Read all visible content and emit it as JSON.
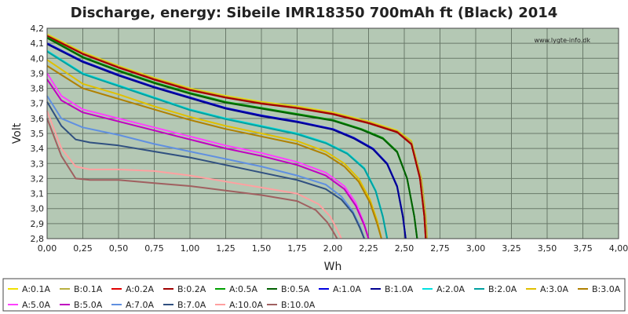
{
  "chart_data": {
    "type": "line",
    "title": "Discharge, energy: Sibeile IMR18350 700mAh ft (Black) 2014",
    "xlabel": "Wh",
    "ylabel": "Volt",
    "watermark": "www.lygte-info.dk",
    "xlim": [
      0,
      4.0
    ],
    "ylim": [
      2.8,
      4.2
    ],
    "x_ticks": [
      "0,00",
      "0,25",
      "0,50",
      "0,75",
      "1,00",
      "1,25",
      "1,50",
      "1,75",
      "2,00",
      "2,25",
      "2,50",
      "2,75",
      "3,00",
      "3,25",
      "3,50",
      "3,75",
      "4,00"
    ],
    "y_ticks": [
      "2,8",
      "2,9",
      "3,0",
      "3,1",
      "3,2",
      "3,3",
      "3,4",
      "3,5",
      "3,6",
      "3,7",
      "3,8",
      "3,9",
      "4,0",
      "4,1",
      "4,2"
    ],
    "grid": true,
    "legend_position": "bottom",
    "series": [
      {
        "name": "A:0.1A",
        "color": "#f0e000",
        "x": [
          0,
          0.25,
          0.5,
          0.75,
          1.0,
          1.25,
          1.5,
          1.75,
          2.0,
          2.25,
          2.45,
          2.55,
          2.62,
          2.65,
          2.66
        ],
        "y": [
          4.16,
          4.04,
          3.95,
          3.87,
          3.8,
          3.75,
          3.71,
          3.68,
          3.64,
          3.58,
          3.52,
          3.45,
          3.2,
          2.95,
          2.8
        ]
      },
      {
        "name": "B:0.1A",
        "color": "#b8b040",
        "x": [
          0,
          0.25,
          0.5,
          0.75,
          1.0,
          1.25,
          1.5,
          1.75,
          2.0,
          2.25,
          2.45,
          2.55,
          2.62,
          2.65,
          2.66
        ],
        "y": [
          4.155,
          4.035,
          3.945,
          3.865,
          3.795,
          3.745,
          3.705,
          3.675,
          3.635,
          3.575,
          3.515,
          3.445,
          3.2,
          2.95,
          2.8
        ]
      },
      {
        "name": "A:0.2A",
        "color": "#e00000",
        "x": [
          0,
          0.25,
          0.5,
          0.75,
          1.0,
          1.25,
          1.5,
          1.75,
          2.0,
          2.25,
          2.45,
          2.55,
          2.61,
          2.64,
          2.65
        ],
        "y": [
          4.15,
          4.03,
          3.94,
          3.86,
          3.79,
          3.74,
          3.7,
          3.67,
          3.63,
          3.57,
          3.51,
          3.43,
          3.2,
          2.95,
          2.8
        ]
      },
      {
        "name": "B:0.2A",
        "color": "#a00000",
        "x": [
          0,
          0.25,
          0.5,
          0.75,
          1.0,
          1.25,
          1.5,
          1.75,
          2.0,
          2.25,
          2.45,
          2.55,
          2.61,
          2.64,
          2.65
        ],
        "y": [
          4.148,
          4.028,
          3.938,
          3.858,
          3.788,
          3.738,
          3.698,
          3.668,
          3.628,
          3.568,
          3.508,
          3.428,
          3.2,
          2.95,
          2.8
        ]
      },
      {
        "name": "A:0.5A",
        "color": "#00a000",
        "x": [
          0,
          0.25,
          0.5,
          0.75,
          1.0,
          1.25,
          1.5,
          1.75,
          2.0,
          2.2,
          2.35,
          2.45,
          2.52,
          2.57,
          2.59
        ],
        "y": [
          4.14,
          4.01,
          3.92,
          3.84,
          3.77,
          3.71,
          3.67,
          3.63,
          3.59,
          3.53,
          3.47,
          3.38,
          3.2,
          2.95,
          2.8
        ]
      },
      {
        "name": "B:0.5A",
        "color": "#006000",
        "x": [
          0,
          0.25,
          0.5,
          0.75,
          1.0,
          1.25,
          1.5,
          1.75,
          2.0,
          2.2,
          2.35,
          2.45,
          2.52,
          2.57,
          2.59
        ],
        "y": [
          4.135,
          4.005,
          3.915,
          3.835,
          3.765,
          3.705,
          3.665,
          3.625,
          3.585,
          3.525,
          3.465,
          3.375,
          3.2,
          2.95,
          2.8
        ]
      },
      {
        "name": "A:1.0A",
        "color": "#0000e0",
        "x": [
          0,
          0.25,
          0.5,
          0.75,
          1.0,
          1.25,
          1.5,
          1.75,
          2.0,
          2.15,
          2.28,
          2.38,
          2.45,
          2.49,
          2.51
        ],
        "y": [
          4.1,
          3.98,
          3.89,
          3.81,
          3.74,
          3.67,
          3.62,
          3.58,
          3.53,
          3.47,
          3.4,
          3.3,
          3.15,
          2.95,
          2.8
        ]
      },
      {
        "name": "B:1.0A",
        "color": "#000090",
        "x": [
          0,
          0.25,
          0.5,
          0.75,
          1.0,
          1.25,
          1.5,
          1.75,
          2.0,
          2.15,
          2.28,
          2.38,
          2.45,
          2.49,
          2.51
        ],
        "y": [
          4.095,
          3.975,
          3.885,
          3.805,
          3.735,
          3.665,
          3.615,
          3.575,
          3.525,
          3.465,
          3.395,
          3.295,
          3.145,
          2.945,
          2.8
        ]
      },
      {
        "name": "A:2.0A",
        "color": "#00e0e0",
        "x": [
          0,
          0.25,
          0.5,
          0.75,
          1.0,
          1.25,
          1.5,
          1.75,
          1.95,
          2.1,
          2.22,
          2.3,
          2.35,
          2.38
        ],
        "y": [
          4.05,
          3.9,
          3.82,
          3.74,
          3.66,
          3.6,
          3.55,
          3.5,
          3.44,
          3.37,
          3.27,
          3.12,
          2.95,
          2.8
        ]
      },
      {
        "name": "B:2.0A",
        "color": "#00a0a0",
        "x": [
          0,
          0.25,
          0.5,
          0.75,
          1.0,
          1.25,
          1.5,
          1.75,
          1.95,
          2.1,
          2.22,
          2.3,
          2.35,
          2.38
        ],
        "y": [
          4.045,
          3.895,
          3.815,
          3.735,
          3.655,
          3.595,
          3.545,
          3.495,
          3.435,
          3.365,
          3.265,
          3.115,
          2.945,
          2.8
        ]
      },
      {
        "name": "A:3.0A",
        "color": "#e0c000",
        "x": [
          0,
          0.25,
          0.5,
          0.75,
          1.0,
          1.25,
          1.5,
          1.75,
          1.95,
          2.08,
          2.18,
          2.26,
          2.31,
          2.34
        ],
        "y": [
          3.99,
          3.83,
          3.76,
          3.68,
          3.61,
          3.55,
          3.5,
          3.45,
          3.38,
          3.3,
          3.2,
          3.06,
          2.92,
          2.8
        ]
      },
      {
        "name": "B:3.0A",
        "color": "#b08000",
        "x": [
          0,
          0.25,
          0.5,
          0.75,
          1.0,
          1.25,
          1.5,
          1.75,
          1.95,
          2.08,
          2.18,
          2.26,
          2.31,
          2.34
        ],
        "y": [
          3.95,
          3.8,
          3.73,
          3.66,
          3.59,
          3.53,
          3.48,
          3.43,
          3.36,
          3.28,
          3.18,
          3.04,
          2.9,
          2.8
        ]
      },
      {
        "name": "A:5.0A",
        "color": "#ff40ff",
        "x": [
          0,
          0.1,
          0.25,
          0.5,
          0.75,
          1.0,
          1.25,
          1.5,
          1.75,
          1.95,
          2.08,
          2.16,
          2.22,
          2.25
        ],
        "y": [
          3.9,
          3.75,
          3.66,
          3.6,
          3.54,
          3.48,
          3.42,
          3.37,
          3.31,
          3.24,
          3.15,
          3.04,
          2.9,
          2.8
        ]
      },
      {
        "name": "B:5.0A",
        "color": "#c000c0",
        "x": [
          0,
          0.1,
          0.25,
          0.5,
          0.75,
          1.0,
          1.25,
          1.5,
          1.75,
          1.95,
          2.08,
          2.16,
          2.22,
          2.25
        ],
        "y": [
          3.86,
          3.72,
          3.64,
          3.58,
          3.52,
          3.46,
          3.4,
          3.35,
          3.29,
          3.22,
          3.13,
          3.02,
          2.89,
          2.8
        ]
      },
      {
        "name": "A:7.0A",
        "color": "#6090e0",
        "x": [
          0,
          0.1,
          0.25,
          0.5,
          0.75,
          1.0,
          1.25,
          1.5,
          1.75,
          1.95,
          2.06,
          2.14,
          2.19,
          2.22
        ],
        "y": [
          3.75,
          3.6,
          3.54,
          3.49,
          3.43,
          3.38,
          3.33,
          3.28,
          3.22,
          3.16,
          3.08,
          2.98,
          2.88,
          2.8
        ]
      },
      {
        "name": "B:7.0A",
        "color": "#305080",
        "x": [
          0,
          0.1,
          0.2,
          0.3,
          0.5,
          0.75,
          1.0,
          1.25,
          1.5,
          1.75,
          1.95,
          2.06,
          2.14,
          2.19,
          2.22
        ],
        "y": [
          3.71,
          3.55,
          3.46,
          3.44,
          3.42,
          3.38,
          3.34,
          3.29,
          3.24,
          3.19,
          3.13,
          3.06,
          2.97,
          2.87,
          2.8
        ]
      },
      {
        "name": "A:10.0A",
        "color": "#ffa0a0",
        "x": [
          0,
          0.1,
          0.2,
          0.3,
          0.5,
          0.75,
          1.0,
          1.25,
          1.5,
          1.75,
          1.9,
          1.98,
          2.03,
          2.06
        ],
        "y": [
          3.65,
          3.4,
          3.28,
          3.26,
          3.26,
          3.25,
          3.22,
          3.18,
          3.14,
          3.1,
          3.03,
          2.95,
          2.86,
          2.8
        ]
      },
      {
        "name": "B:10.0A",
        "color": "#a06060",
        "x": [
          0,
          0.1,
          0.2,
          0.3,
          0.5,
          0.75,
          1.0,
          1.25,
          1.5,
          1.75,
          1.88,
          1.96,
          2.0,
          2.03
        ],
        "y": [
          3.6,
          3.35,
          3.2,
          3.19,
          3.19,
          3.17,
          3.15,
          3.12,
          3.09,
          3.05,
          2.99,
          2.91,
          2.85,
          2.8
        ]
      }
    ]
  }
}
